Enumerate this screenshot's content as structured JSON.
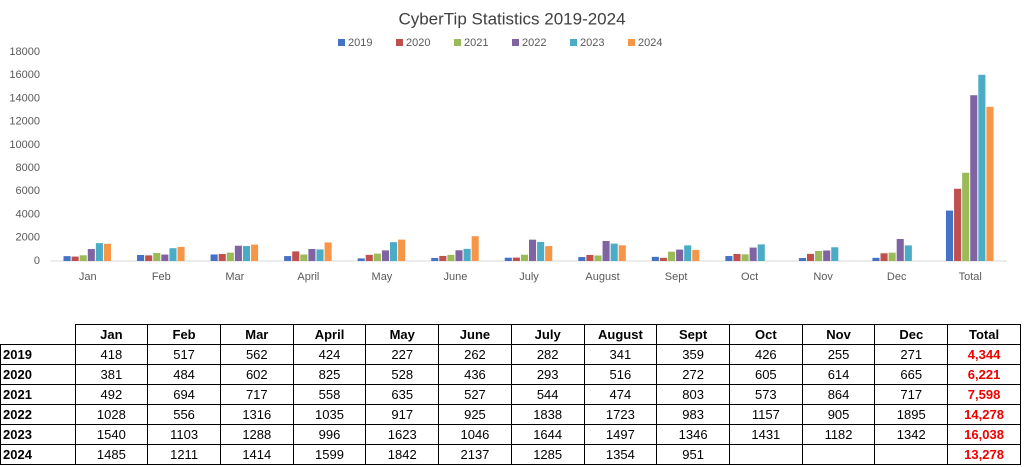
{
  "chart_data": {
    "type": "bar",
    "title": "CyberTip Statistics 2019-2024",
    "categories": [
      "Jan",
      "Feb",
      "Mar",
      "April",
      "May",
      "June",
      "July",
      "August",
      "Sept",
      "Oct",
      "Nov",
      "Dec",
      "Total"
    ],
    "ylim": [
      0,
      18000
    ],
    "yticks": [
      0,
      2000,
      4000,
      6000,
      8000,
      10000,
      12000,
      14000,
      16000,
      18000
    ],
    "grid": false,
    "legend": "top",
    "series": [
      {
        "name": "2019",
        "color": "#4472c4",
        "values": [
          418,
          517,
          562,
          424,
          227,
          262,
          282,
          341,
          359,
          426,
          255,
          271,
          4344
        ],
        "value_labels": [
          "418",
          "517",
          "562",
          "424",
          "227",
          "262",
          "282",
          "341",
          "359",
          "426",
          "255",
          "271",
          "4,344"
        ]
      },
      {
        "name": "2020",
        "color": "#c0504d",
        "values": [
          381,
          484,
          602,
          825,
          528,
          436,
          293,
          516,
          272,
          605,
          614,
          665,
          6221
        ],
        "value_labels": [
          "381",
          "484",
          "602",
          "825",
          "528",
          "436",
          "293",
          "516",
          "272",
          "605",
          "614",
          "665",
          "6,221"
        ]
      },
      {
        "name": "2021",
        "color": "#9bbb59",
        "values": [
          492,
          694,
          717,
          558,
          635,
          527,
          544,
          474,
          803,
          573,
          864,
          717,
          7598
        ],
        "value_labels": [
          "492",
          "694",
          "717",
          "558",
          "635",
          "527",
          "544",
          "474",
          "803",
          "573",
          "864",
          "717",
          "7,598"
        ]
      },
      {
        "name": "2022",
        "color": "#8064a2",
        "values": [
          1028,
          556,
          1316,
          1035,
          917,
          925,
          1838,
          1723,
          983,
          1157,
          905,
          1895,
          14278
        ],
        "value_labels": [
          "1028",
          "556",
          "1316",
          "1035",
          "917",
          "925",
          "1838",
          "1723",
          "983",
          "1157",
          "905",
          "1895",
          "14,278"
        ]
      },
      {
        "name": "2023",
        "color": "#4bacc6",
        "values": [
          1540,
          1103,
          1288,
          996,
          1623,
          1046,
          1644,
          1497,
          1346,
          1431,
          1182,
          1342,
          16038
        ],
        "value_labels": [
          "1540",
          "1103",
          "1288",
          "996",
          "1623",
          "1046",
          "1644",
          "1497",
          "1346",
          "1431",
          "1182",
          "1342",
          "16,038"
        ]
      },
      {
        "name": "2024",
        "color": "#f79646",
        "values": [
          1485,
          1211,
          1414,
          1599,
          1842,
          2137,
          1285,
          1354,
          951,
          null,
          null,
          null,
          13278
        ],
        "value_labels": [
          "1485",
          "1211",
          "1414",
          "1599",
          "1842",
          "2137",
          "1285",
          "1354",
          "951",
          null,
          null,
          null,
          "13,278"
        ]
      }
    ]
  }
}
